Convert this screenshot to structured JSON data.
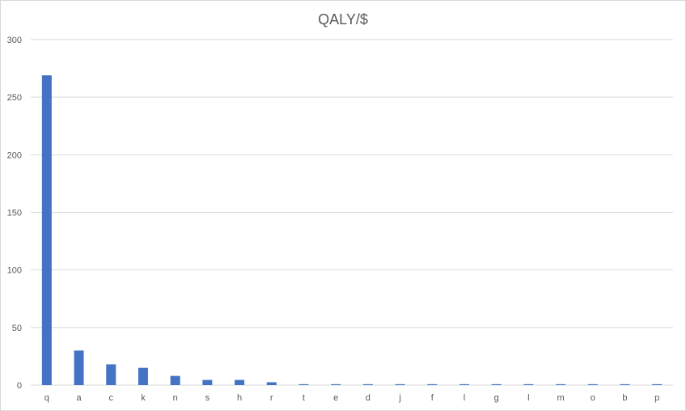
{
  "chart_data": {
    "type": "bar",
    "title": "QALY/$",
    "xlabel": "",
    "ylabel": "",
    "categories": [
      "q",
      "a",
      "c",
      "k",
      "n",
      "s",
      "h",
      "r",
      "t",
      "e",
      "d",
      "j",
      "f",
      "l",
      "g",
      "l",
      "m",
      "o",
      "b",
      "p"
    ],
    "values": [
      269,
      30,
      18,
      15,
      8,
      4.5,
      4.5,
      2.5,
      0.8,
      0.8,
      0.8,
      0.8,
      0.8,
      0.8,
      0.8,
      0.8,
      0.8,
      0.8,
      0.8,
      0.8
    ],
    "ylim": [
      0,
      300
    ],
    "yticks": [
      0,
      50,
      100,
      150,
      200,
      250,
      300
    ],
    "grid": true,
    "legend": "none",
    "bar_color": "#4472c4",
    "grid_color": "#d9d9d9",
    "text_color": "#595959"
  }
}
